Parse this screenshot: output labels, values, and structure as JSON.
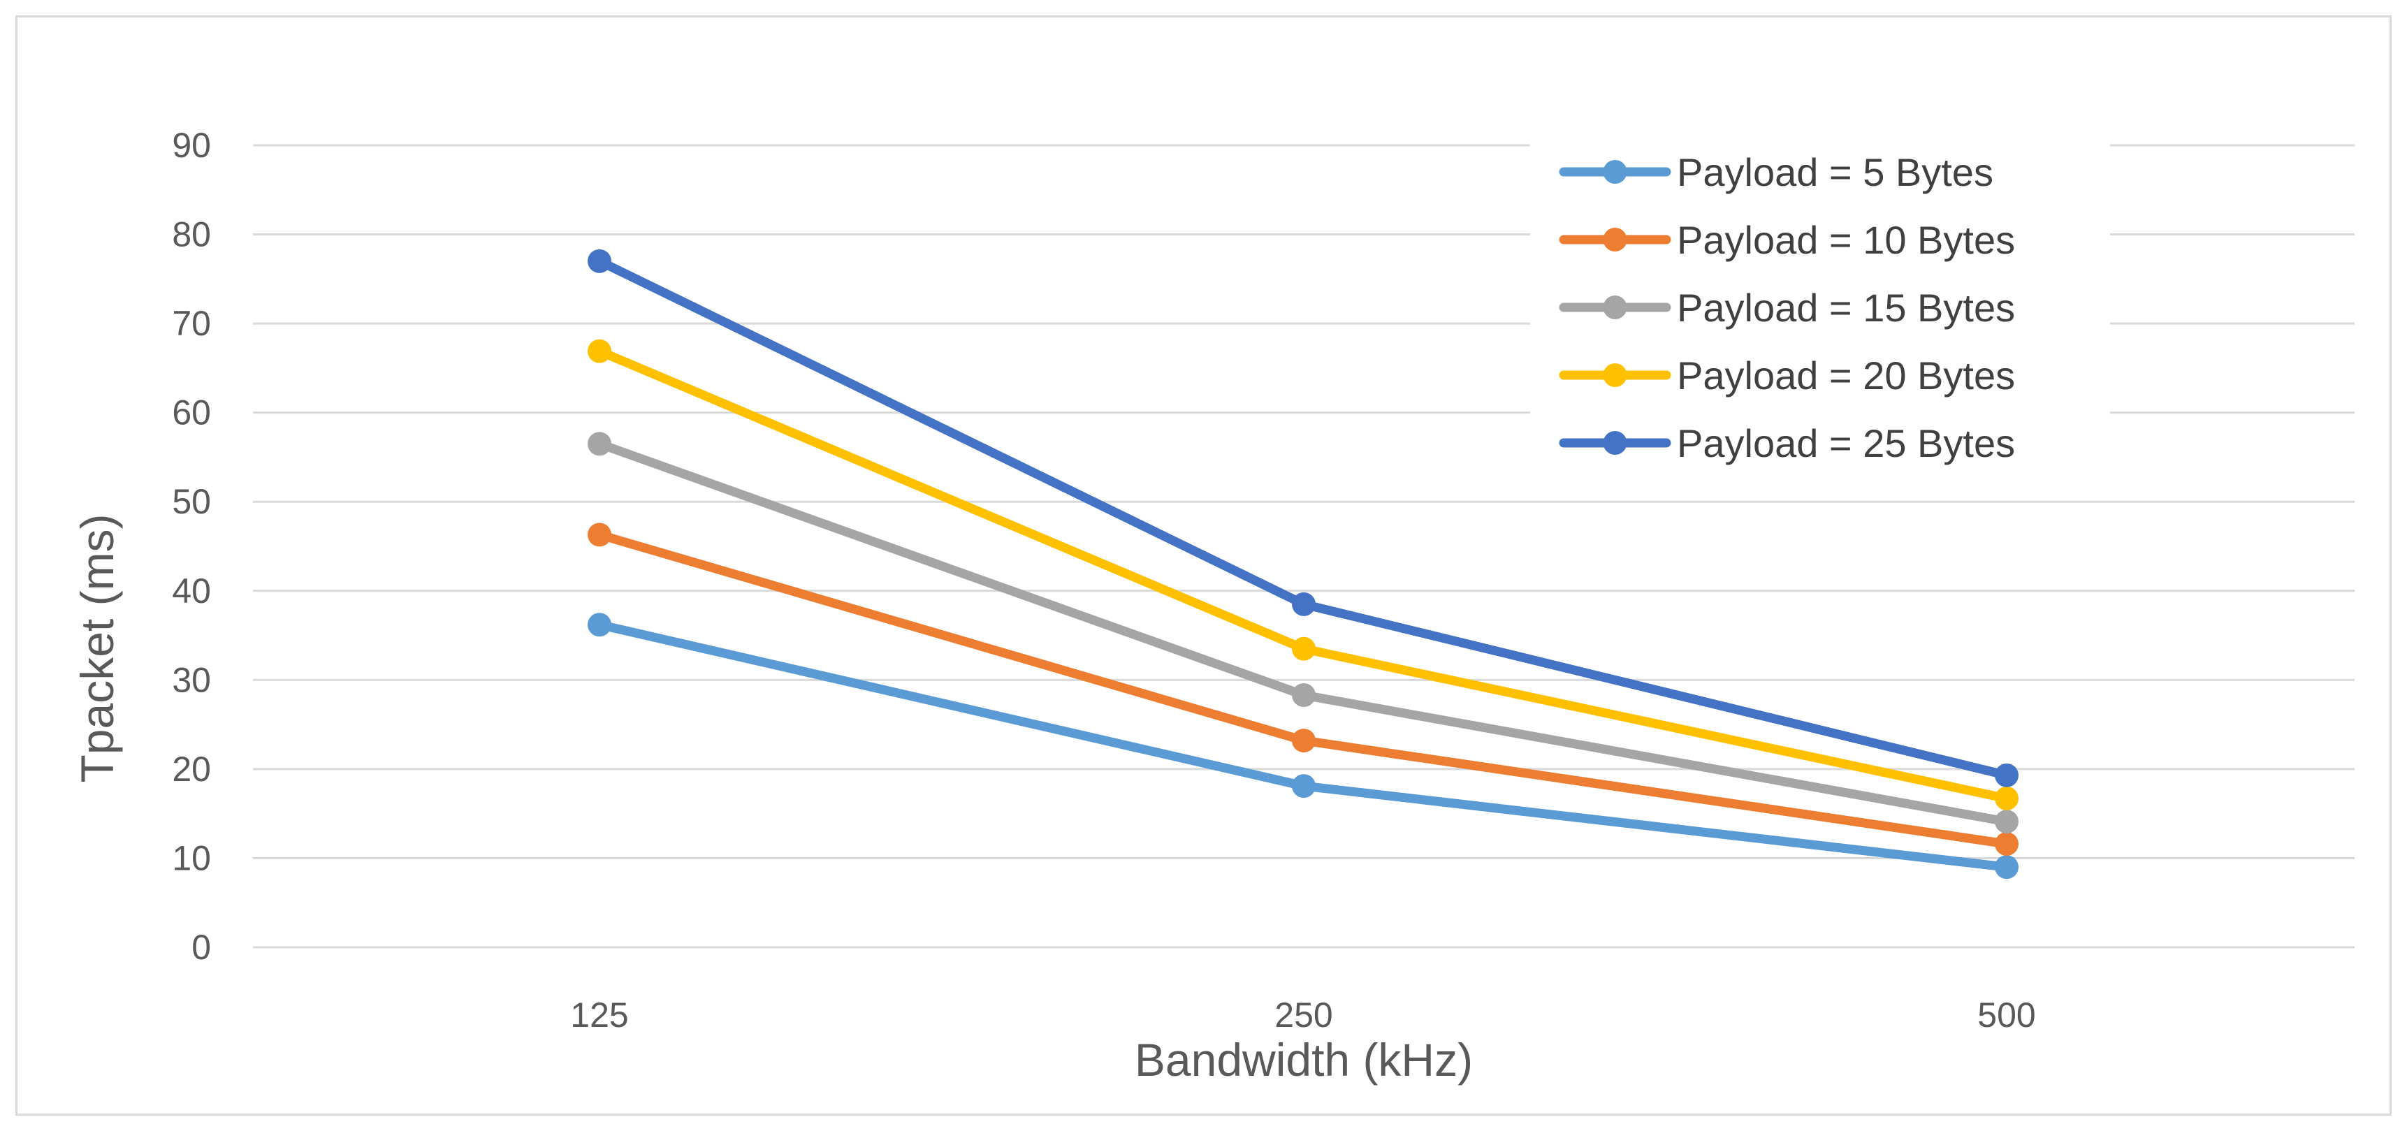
{
  "chart_data": {
    "type": "line",
    "title": "",
    "xlabel": "Bandwidth (kHz)",
    "ylabel": "Tpacket (ms)",
    "categories": [
      "125",
      "250",
      "500"
    ],
    "ylim": [
      0,
      90
    ],
    "yticks": [
      0,
      10,
      20,
      30,
      40,
      50,
      60,
      70,
      80,
      90
    ],
    "grid": true,
    "legend_position": "top-right",
    "series": [
      {
        "name": "Payload = 5 Bytes",
        "color": "#5b9bd5",
        "values": [
          36.2,
          18.1,
          9.0
        ]
      },
      {
        "name": "Payload = 10 Bytes",
        "color": "#ed7d31",
        "values": [
          46.3,
          23.2,
          11.6
        ]
      },
      {
        "name": "Payload = 15 Bytes",
        "color": "#a5a5a5",
        "values": [
          56.5,
          28.3,
          14.1
        ]
      },
      {
        "name": "Payload = 20 Bytes",
        "color": "#ffc000",
        "values": [
          66.9,
          33.5,
          16.7
        ]
      },
      {
        "name": "Payload = 25 Bytes",
        "color": "#4472c4",
        "values": [
          77.0,
          38.5,
          19.3
        ]
      }
    ]
  }
}
